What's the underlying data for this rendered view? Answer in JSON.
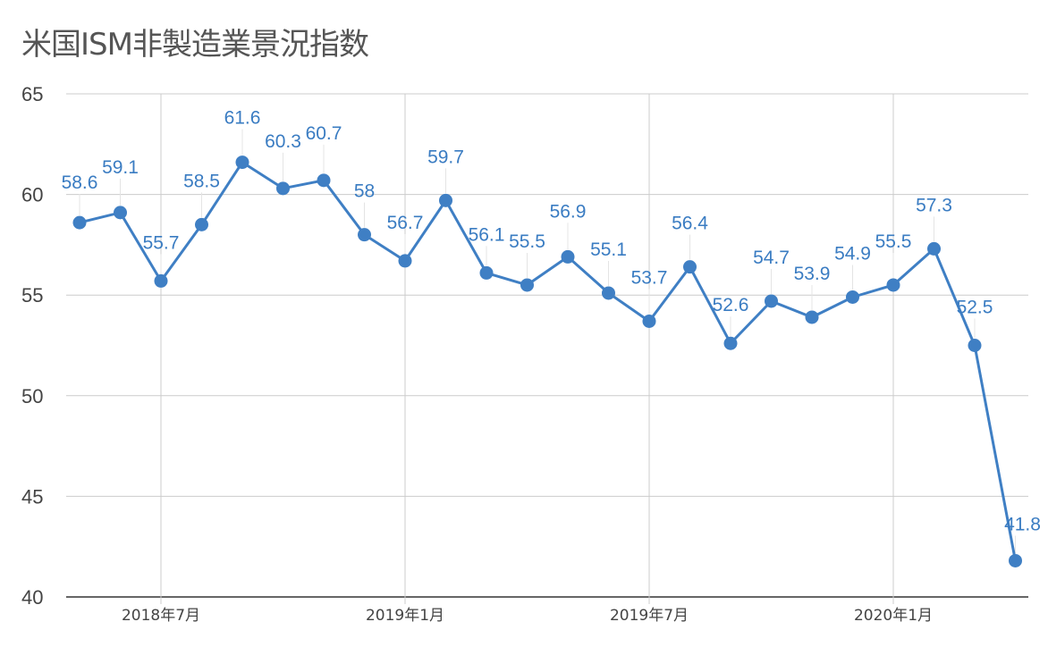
{
  "chart_data": {
    "type": "line",
    "title": "米国ISM非製造業景況指数",
    "xlabel": "",
    "ylabel": "",
    "ylim": [
      40,
      65
    ],
    "yticks": [
      40,
      45,
      50,
      55,
      60,
      65
    ],
    "x_tick_labels": [
      {
        "label": "2018年7月",
        "index": 2
      },
      {
        "label": "2019年1月",
        "index": 8
      },
      {
        "label": "2019年7月",
        "index": 14
      },
      {
        "label": "2020年1月",
        "index": 20
      }
    ],
    "grid": true,
    "legend": "none",
    "series": [
      {
        "values": [
          58.6,
          59.1,
          55.7,
          58.5,
          61.6,
          60.3,
          60.7,
          58,
          56.7,
          59.7,
          56.1,
          55.5,
          56.9,
          55.1,
          53.7,
          56.4,
          52.6,
          54.7,
          53.9,
          54.9,
          55.5,
          57.3,
          52.5,
          41.8
        ],
        "color": "#3f7fc4"
      }
    ]
  }
}
